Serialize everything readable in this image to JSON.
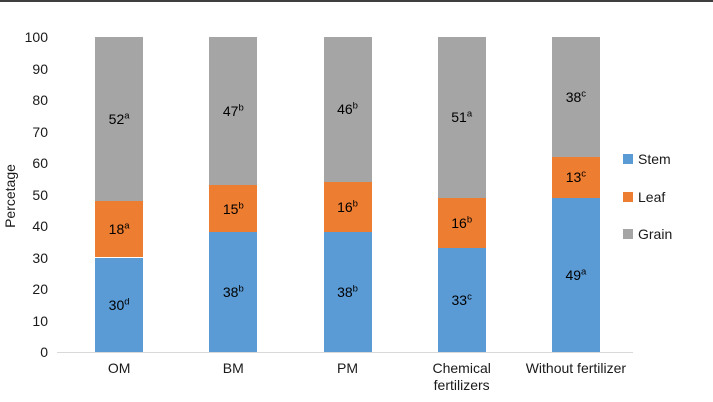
{
  "chart_data": {
    "type": "bar",
    "stacked": true,
    "title": "",
    "categories": [
      "OM",
      "BM",
      "PM",
      "Chemical fertilizers",
      "Without fertilizer"
    ],
    "series": [
      {
        "name": "Stem",
        "color": "#5B9BD5",
        "values": [
          30,
          38,
          38,
          33,
          49
        ],
        "sig_letters": [
          "d",
          "b",
          "b",
          "c",
          "a"
        ]
      },
      {
        "name": "Leaf",
        "color": "#ED7D31",
        "values": [
          18,
          15,
          16,
          16,
          13
        ],
        "sig_letters": [
          "a",
          "b",
          "b",
          "b",
          "c"
        ]
      },
      {
        "name": "Grain",
        "color": "#A5A5A5",
        "values": [
          52,
          47,
          46,
          51,
          38
        ],
        "sig_letters": [
          "a",
          "b",
          "b",
          "a",
          "c"
        ]
      }
    ],
    "ylabel": "Percetage",
    "xlabel": "",
    "ylim": [
      0,
      100
    ],
    "ytick_step": 10,
    "yticks": [
      0,
      10,
      20,
      30,
      40,
      50,
      60,
      70,
      80,
      90,
      100
    ],
    "grid": false,
    "legend_position": "right",
    "legend": [
      "Stem",
      "Leaf",
      "Grain"
    ]
  },
  "colors": {
    "axis_line": "#D9D9D9",
    "text": "#1a1a1a",
    "top_border": "#3f3f3f",
    "background": "#ffffff"
  }
}
